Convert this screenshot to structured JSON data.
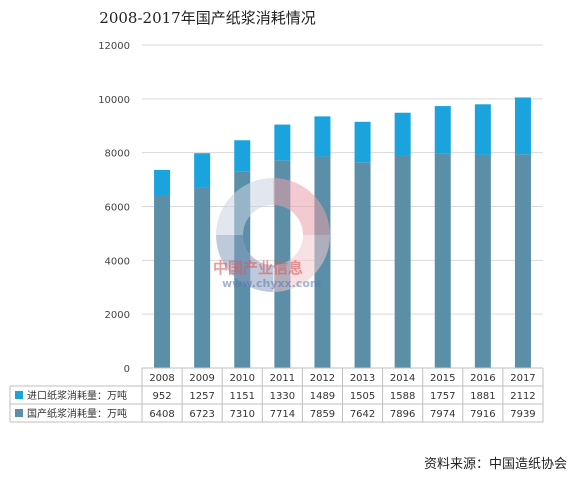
{
  "title": "2008-2017年国产纸浆消耗情况",
  "source": "资料来源：中国造纸协会",
  "watermark": {
    "brand": "中国产业信息",
    "url": "www.chyxx.com"
  },
  "colors": {
    "import": "#1aa3dc",
    "domestic": "#5b8fa8",
    "grid": "#d9d9d9",
    "table_border": "#bfbfbf"
  },
  "chart_data": {
    "type": "bar",
    "stacked": true,
    "title": "2008-2017年国产纸浆消耗情况",
    "categories": [
      "2008",
      "2009",
      "2010",
      "2011",
      "2012",
      "2013",
      "2014",
      "2015",
      "2016",
      "2017"
    ],
    "series": [
      {
        "name": "国产纸浆消耗量：万吨",
        "values": [
          6408,
          6723,
          7310,
          7714,
          7859,
          7642,
          7896,
          7974,
          7916,
          7939
        ],
        "color": "#5b8fa8"
      },
      {
        "name": "进口纸浆消耗量：万吨",
        "values": [
          952,
          1257,
          1151,
          1330,
          1489,
          1505,
          1588,
          1757,
          1881,
          2112
        ],
        "color": "#1aa3dc"
      }
    ],
    "yticks": [
      "0",
      "2000",
      "4000",
      "6000",
      "8000",
      "10000",
      "12000"
    ],
    "ylim": [
      0,
      12000
    ],
    "grid": true,
    "legend": "data-table-below"
  }
}
